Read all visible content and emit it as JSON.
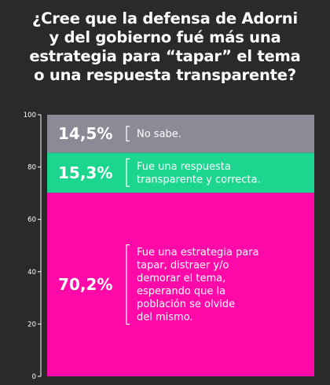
{
  "header": {
    "title_lines": [
      "¿Cree que la defensa de Adorni",
      "y del gobierno fué más una",
      "estrategia para “tapar” el tema",
      "o una respuesta transparente?"
    ]
  },
  "colors": {
    "background": "#2a2a2a",
    "axis": "#ffffff",
    "segment_no_sabe": "#8a8b96",
    "segment_transparente": "#1cd68f",
    "segment_tapar": "#ff0aa8"
  },
  "chart_data": {
    "type": "bar",
    "stacked": true,
    "ylim": [
      0,
      100
    ],
    "yticks": [
      0,
      20,
      40,
      60,
      80,
      100
    ],
    "grid": false,
    "segments": [
      {
        "value": 70.2,
        "value_label": "70,2%",
        "label_lines": [
          "Fue una estrategia para",
          "tapar, distraer y/o",
          "demorar el tema,",
          "esperando que la",
          "población se olvide",
          "del mismo."
        ],
        "color": "#ff0aa8"
      },
      {
        "value": 15.3,
        "value_label": "15,3%",
        "label_lines": [
          "Fue una respuesta",
          "transparente y correcta."
        ],
        "color": "#1cd68f"
      },
      {
        "value": 14.5,
        "value_label": "14,5%",
        "label_lines": [
          "No sabe."
        ],
        "color": "#8a8b96"
      }
    ]
  }
}
